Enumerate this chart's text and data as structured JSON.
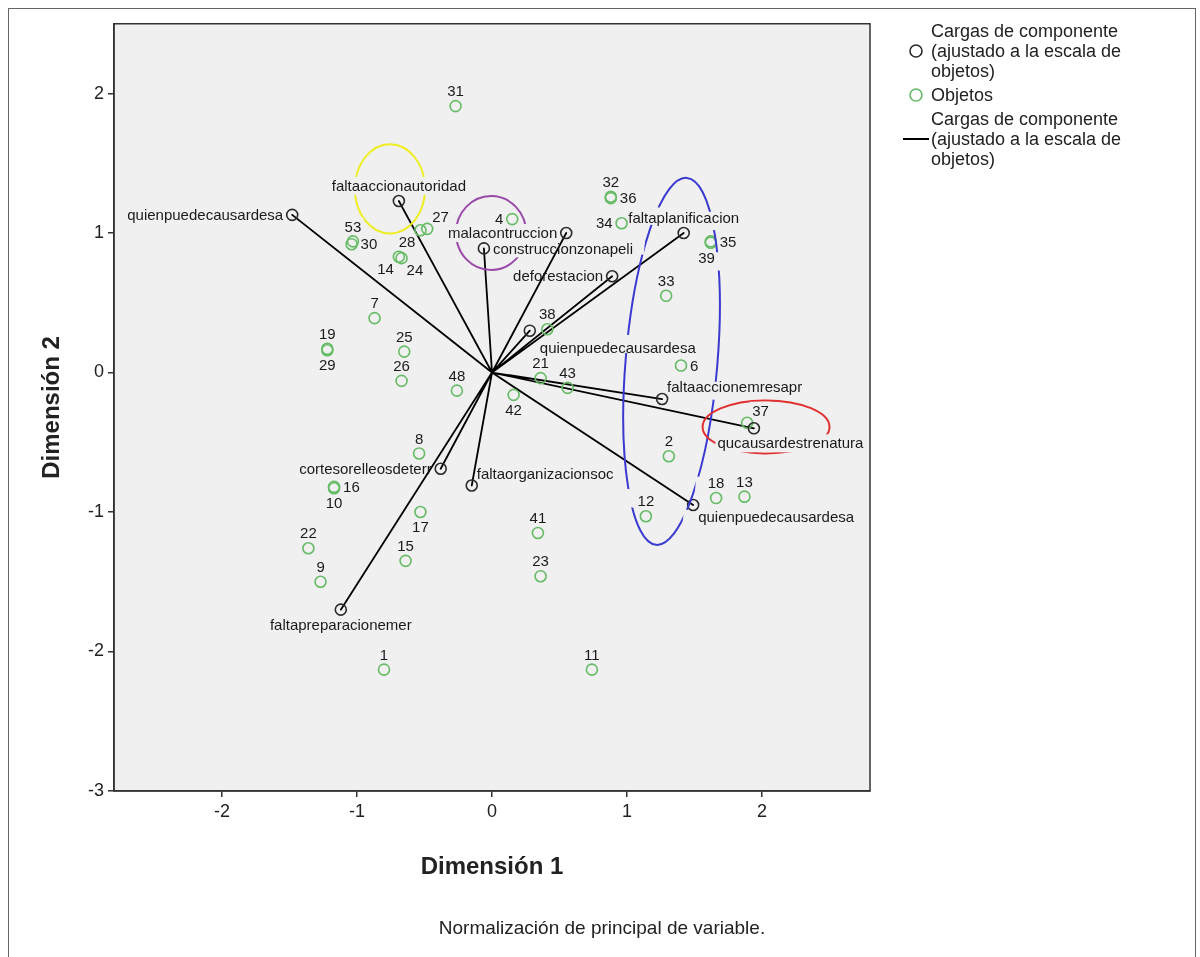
{
  "chart_data": {
    "type": "scatter",
    "xlabel": "Dimensión 1",
    "ylabel": "Dimensión 2",
    "annotations": [
      "Normalización de principal de variable.",
      {
        "text": "quienpuedecausardesa",
        "x": -1.48,
        "y": 1.13
      },
      {
        "text": "faltaaccionautoridad",
        "x": -0.69,
        "y": 1.23
      },
      {
        "text": "construccionzonapeli",
        "x": -0.06,
        "y": 0.89
      },
      {
        "text": "malacontruccion",
        "x": 0.55,
        "y": 1.0
      },
      {
        "text": "faltaplanificacion",
        "x": 1.42,
        "y": 1.0
      },
      {
        "text": "deforestacion",
        "x": 0.89,
        "y": 0.69
      },
      {
        "text": "quienpuedecausardesa",
        "x": 0.28,
        "y": 0.3
      },
      {
        "text": "faltaaccionemresapr",
        "x": 1.26,
        "y": -0.19
      },
      {
        "text": "qucausardestrenatura",
        "x": 1.94,
        "y": -0.4
      },
      {
        "text": "quienpuedecausardesa",
        "x": 1.49,
        "y": -0.95
      },
      {
        "text": "faltaorganizacionsoc",
        "x": -0.15,
        "y": -0.81
      },
      {
        "text": "cortesorelleosdeterr",
        "x": -0.38,
        "y": -0.69
      },
      {
        "text": "faltapreparacionemer",
        "x": -1.12,
        "y": -1.7
      },
      {
        "text": "31",
        "x": -0.27,
        "y": 1.91
      },
      {
        "text": "32",
        "x": 0.88,
        "y": 1.26
      },
      {
        "text": "36",
        "x": 0.88,
        "y": 1.25
      },
      {
        "text": "34",
        "x": 0.96,
        "y": 1.07
      },
      {
        "text": "4",
        "x": 0.15,
        "y": 1.1
      },
      {
        "text": "35",
        "x": 1.62,
        "y": 0.94
      },
      {
        "text": "39",
        "x": 1.62,
        "y": 0.93
      },
      {
        "text": "33",
        "x": 1.29,
        "y": 0.55
      },
      {
        "text": "6",
        "x": 1.4,
        "y": 0.05
      },
      {
        "text": "37",
        "x": 1.89,
        "y": -0.36
      },
      {
        "text": "2",
        "x": 1.31,
        "y": -0.6
      },
      {
        "text": "18",
        "x": 1.66,
        "y": -0.9
      },
      {
        "text": "13",
        "x": 1.87,
        "y": -0.89
      },
      {
        "text": "12",
        "x": 1.14,
        "y": -1.03
      },
      {
        "text": "41",
        "x": 0.34,
        "y": -1.15
      },
      {
        "text": "23",
        "x": 0.36,
        "y": -1.46
      },
      {
        "text": "11",
        "x": 0.74,
        "y": -2.13
      },
      {
        "text": "1",
        "x": -0.8,
        "y": -2.13
      },
      {
        "text": "9",
        "x": -1.27,
        "y": -1.5
      },
      {
        "text": "22",
        "x": -1.36,
        "y": -1.26
      },
      {
        "text": "15",
        "x": -0.64,
        "y": -1.35
      },
      {
        "text": "17",
        "x": -0.53,
        "y": -1.0
      },
      {
        "text": "16",
        "x": -1.17,
        "y": -0.82
      },
      {
        "text": "10",
        "x": -1.17,
        "y": -0.83
      },
      {
        "text": "8",
        "x": -0.54,
        "y": -0.58
      },
      {
        "text": "19",
        "x": -1.22,
        "y": 0.17
      },
      {
        "text": "29",
        "x": -1.22,
        "y": 0.16
      },
      {
        "text": "7",
        "x": -0.87,
        "y": 0.39
      },
      {
        "text": "25",
        "x": -0.65,
        "y": 0.15
      },
      {
        "text": "26",
        "x": -0.67,
        "y": -0.06
      },
      {
        "text": "48",
        "x": -0.26,
        "y": -0.13
      },
      {
        "text": "42",
        "x": 0.16,
        "y": -0.16
      },
      {
        "text": "21",
        "x": 0.36,
        "y": -0.04
      },
      {
        "text": "43",
        "x": 0.56,
        "y": -0.11
      },
      {
        "text": "38",
        "x": 0.41,
        "y": 0.31
      },
      {
        "text": "28",
        "x": -0.53,
        "y": 1.02
      },
      {
        "text": "27",
        "x": -0.48,
        "y": 1.03
      },
      {
        "text": "53",
        "x": -1.03,
        "y": 0.94
      },
      {
        "text": "30",
        "x": -1.04,
        "y": 0.92
      },
      {
        "text": "14",
        "x": -0.69,
        "y": 0.83
      },
      {
        "text": "24",
        "x": -0.67,
        "y": 0.82
      }
    ],
    "xlim": [
      -2.8,
      2.8
    ],
    "ylim": [
      -3,
      2.5
    ],
    "xticks": [
      -2,
      -1,
      0,
      1,
      2
    ],
    "yticks": [
      -3,
      -2,
      -1,
      0,
      1,
      2
    ],
    "legend": "right",
    "marker": "circle",
    "series": [
      {
        "name": "Cargas de componente (ajustado a la escala de objetos)",
        "type": "scatter",
        "color": "#2a2a2a",
        "x": [
          -1.48,
          -0.69,
          -0.06,
          0.55,
          1.42,
          0.89,
          0.28,
          1.26,
          1.94,
          1.49,
          -0.15,
          -0.38,
          -1.12
        ],
        "values": [
          1.13,
          1.23,
          0.89,
          1.0,
          1.0,
          0.69,
          0.3,
          -0.19,
          -0.4,
          -0.95,
          -0.81,
          -0.69,
          -1.7
        ]
      },
      {
        "name": "Objetos",
        "type": "scatter",
        "color": "#66bb66",
        "x": [
          -0.27,
          0.88,
          0.88,
          0.96,
          0.15,
          1.62,
          1.62,
          1.29,
          1.4,
          1.89,
          1.31,
          1.66,
          1.87,
          1.14,
          0.34,
          0.36,
          0.74,
          -0.8,
          -1.27,
          -1.36,
          -0.64,
          -0.53,
          -1.17,
          -1.17,
          -0.54,
          -1.22,
          -1.22,
          -0.87,
          -0.65,
          -0.67,
          -0.26,
          0.16,
          0.36,
          0.56,
          0.41,
          -0.53,
          -0.48,
          -1.03,
          -1.04,
          -0.69,
          -0.67
        ],
        "values": [
          1.91,
          1.26,
          1.25,
          1.07,
          1.1,
          0.94,
          0.93,
          0.55,
          0.05,
          -0.36,
          -0.6,
          -0.9,
          -0.89,
          -1.03,
          -1.15,
          -1.46,
          -2.13,
          -2.13,
          -1.5,
          -1.26,
          -1.35,
          -1.0,
          -0.82,
          -0.83,
          -0.58,
          0.17,
          0.16,
          0.39,
          0.15,
          -0.06,
          -0.13,
          -0.16,
          -0.04,
          -0.11,
          0.31,
          1.02,
          1.03,
          0.94,
          0.92,
          0.83,
          0.82
        ]
      },
      {
        "name": "Cargas de componente (ajustado a la escala de objetos)",
        "type": "line",
        "color": "#000000",
        "marker": "none",
        "x": [
          0,
          -1.48,
          0,
          -0.69,
          0,
          -0.06,
          0,
          0.55,
          0,
          1.42,
          0,
          0.89,
          0,
          0.28,
          0,
          1.26,
          0,
          1.94,
          0,
          1.49,
          0,
          -0.15,
          0,
          -0.38,
          0,
          -1.12
        ],
        "values": [
          0,
          1.13,
          0,
          1.23,
          0,
          0.89,
          0,
          1.0,
          0,
          1.0,
          0,
          0.69,
          0,
          0.3,
          0,
          -0.19,
          0,
          -0.4,
          0,
          -0.95,
          0,
          -0.81,
          0,
          -0.69,
          0,
          -1.7
        ]
      }
    ]
  }
}
